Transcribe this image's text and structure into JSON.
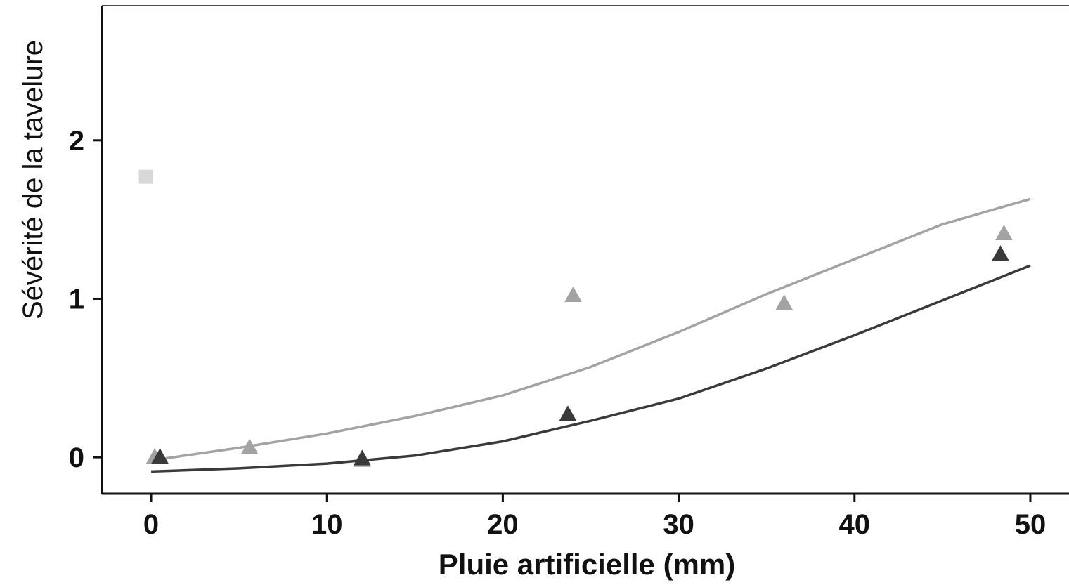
{
  "chart_data": {
    "type": "scatter",
    "xlabel": "Pluie artificielle (mm)",
    "ylabel": "Sévérité de la tavelure",
    "xlim": [
      -2.8,
      52.2
    ],
    "ylim": [
      -0.23,
      2.85
    ],
    "x_ticks": [
      "0",
      "10",
      "20",
      "30",
      "40",
      "50"
    ],
    "y_ticks": [
      "0",
      "1",
      "2"
    ],
    "grid": false,
    "legend": "none",
    "colors": {
      "light": "#a3a3a3",
      "dark": "#3a3a3a",
      "extra": "#d8d8d8",
      "axis": "#111111"
    },
    "series": [
      {
        "marker": "triangle",
        "color": "#a3a3a3",
        "points": [
          [
            0.2,
            0.0
          ],
          [
            5.6,
            0.06
          ],
          [
            12.0,
            -0.02
          ],
          [
            24.0,
            1.02
          ],
          [
            36.0,
            0.97
          ],
          [
            48.5,
            1.41
          ]
        ],
        "fit": [
          [
            0,
            -0.02
          ],
          [
            5,
            0.06
          ],
          [
            10,
            0.15
          ],
          [
            15,
            0.26
          ],
          [
            20,
            0.39
          ],
          [
            25,
            0.57
          ],
          [
            30,
            0.79
          ],
          [
            35,
            1.03
          ],
          [
            40,
            1.25
          ],
          [
            45,
            1.47
          ],
          [
            50,
            1.63
          ]
        ]
      },
      {
        "marker": "triangle",
        "color": "#3a3a3a",
        "points": [
          [
            0.5,
            0.0
          ],
          [
            12.0,
            -0.01
          ],
          [
            23.7,
            0.27
          ],
          [
            48.3,
            1.28
          ]
        ],
        "fit": [
          [
            0,
            -0.09
          ],
          [
            5,
            -0.07
          ],
          [
            10,
            -0.04
          ],
          [
            15,
            0.01
          ],
          [
            20,
            0.1
          ],
          [
            25,
            0.23
          ],
          [
            30,
            0.37
          ],
          [
            35,
            0.56
          ],
          [
            40,
            0.77
          ],
          [
            45,
            0.99
          ],
          [
            50,
            1.21
          ]
        ]
      },
      {
        "marker": "square",
        "color": "#d8d8d8",
        "points": [
          [
            -0.3,
            1.77
          ]
        ]
      }
    ]
  }
}
